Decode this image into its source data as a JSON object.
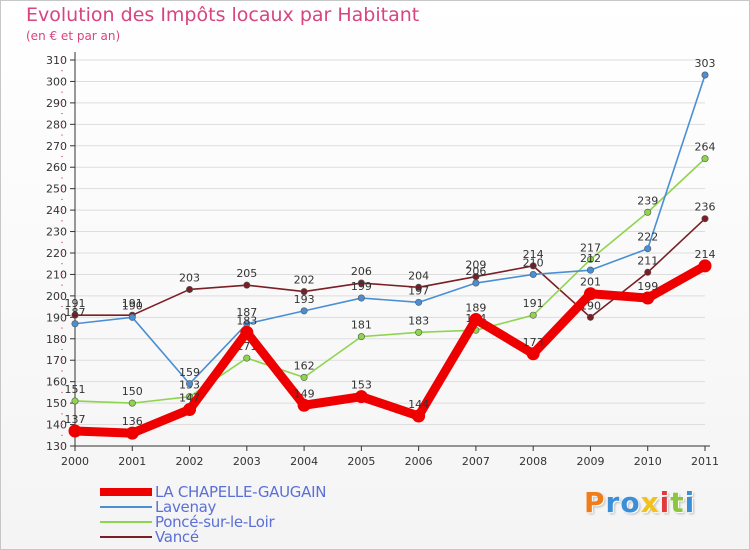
{
  "title": "Evolution des Impôts locaux par Habitant",
  "subtitle": "(en € et par an)",
  "logo_text": "Proxiti",
  "colors": {
    "title": "#d6457e",
    "legend_text": "#5b6fd6",
    "grid": "#dddddd",
    "axis": "#333333"
  },
  "chart_data": {
    "type": "line",
    "title": "Evolution des Impôts locaux par Habitant",
    "subtitle": "(en € et par an)",
    "xlabel": "",
    "ylabel": "",
    "x": [
      "2000",
      "2001",
      "2002",
      "2003",
      "2004",
      "2005",
      "2006",
      "2007",
      "2008",
      "2009",
      "2010",
      "2011"
    ],
    "ylim": [
      130,
      310
    ],
    "yticks": [
      130,
      140,
      150,
      160,
      170,
      180,
      190,
      200,
      210,
      220,
      230,
      240,
      250,
      260,
      270,
      280,
      290,
      300,
      310
    ],
    "grid": true,
    "legend_position": "bottom-left",
    "series": [
      {
        "name": "Vancé",
        "color": "#7a1f25",
        "values": [
          191,
          191,
          203,
          205,
          202,
          206,
          204,
          209,
          214,
          190,
          211,
          236
        ],
        "labels": [
          "191",
          "191",
          "203",
          "205",
          "202",
          "206",
          "204",
          "209",
          "214",
          "190",
          "211",
          "236"
        ]
      },
      {
        "name": "Poncé-sur-le-Loir",
        "color": "#8fd44f",
        "values": [
          151,
          150,
          153,
          171,
          162,
          181,
          183,
          184,
          191,
          217,
          239,
          264
        ],
        "labels": [
          "151",
          "150",
          "153",
          "171",
          "162",
          "181",
          "183",
          "184",
          "191",
          "217",
          "239",
          "264"
        ]
      },
      {
        "name": "Lavenay",
        "color": "#4a8fd4",
        "values": [
          187,
          190,
          159,
          187,
          193,
          199,
          197,
          206,
          210,
          212,
          222,
          303
        ],
        "labels": [
          "187",
          "190",
          "159",
          "187",
          "193",
          "199",
          "197",
          "206",
          "210",
          "212",
          "222",
          "303"
        ]
      },
      {
        "name": "LA CHAPELLE-GAUGAIN",
        "color": "#ee0000",
        "values": [
          137,
          136,
          147,
          183,
          149,
          153,
          144,
          189,
          173,
          201,
          199,
          214
        ],
        "labels": [
          "137",
          "136",
          "147",
          "183",
          "149",
          "153",
          "144",
          "189",
          "173",
          "201",
          "199",
          "214"
        ]
      }
    ],
    "legend": [
      "LA CHAPELLE-GAUGAIN",
      "Lavenay",
      "Poncé-sur-le-Loir",
      "Vancé"
    ]
  }
}
